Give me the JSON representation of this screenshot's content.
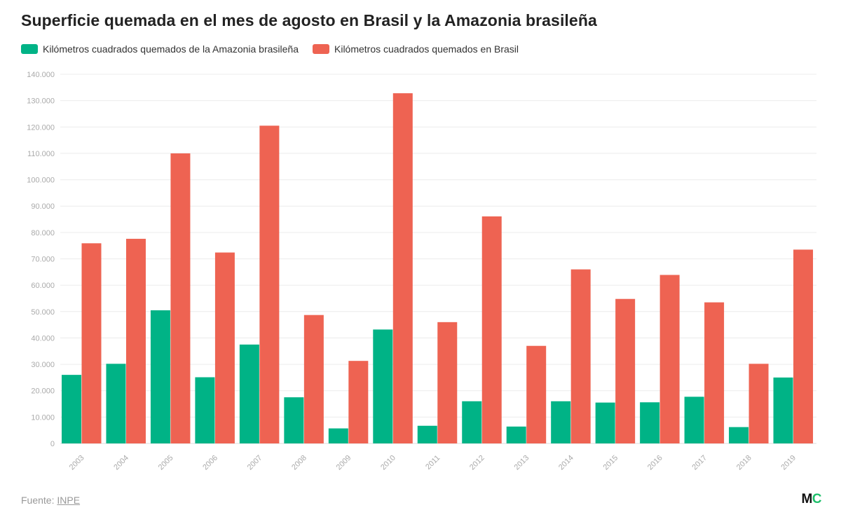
{
  "colors": {
    "amazonia": "#00b386",
    "brasil": "#ee6352",
    "grid": "#ececec",
    "axis_text": "#aaaaaa"
  },
  "logo": {
    "m": "M",
    "c": "C"
  },
  "source": {
    "prefix": "Fuente: ",
    "link": "INPE"
  },
  "chart_data": {
    "type": "bar",
    "title": "Superficie quemada en el mes de agosto en Brasil y la Amazonia brasileña",
    "xlabel": "",
    "ylabel": "",
    "ylim": [
      0,
      140000
    ],
    "yticks": [
      0,
      10000,
      20000,
      30000,
      40000,
      50000,
      60000,
      70000,
      80000,
      90000,
      100000,
      110000,
      120000,
      130000,
      140000
    ],
    "ytick_labels": [
      "0",
      "10.000",
      "20.000",
      "30.000",
      "40.000",
      "50.000",
      "60.000",
      "70.000",
      "80.000",
      "90.000",
      "100.000",
      "110.000",
      "120.000",
      "130.000",
      "140.000"
    ],
    "grid": true,
    "legend_position": "top-left",
    "categories": [
      "2003",
      "2004",
      "2005",
      "2006",
      "2007",
      "2008",
      "2009",
      "2010",
      "2011",
      "2012",
      "2013",
      "2014",
      "2015",
      "2016",
      "2017",
      "2018",
      "2019"
    ],
    "series": [
      {
        "name": "Kilómetros cuadrados quemados de la Amazonia brasileña",
        "values": [
          26000,
          30200,
          50500,
          25100,
          37500,
          17500,
          5700,
          43200,
          6700,
          16000,
          6400,
          16000,
          15500,
          15600,
          17700,
          6200,
          25000
        ]
      },
      {
        "name": "Kilómetros cuadrados quemados en Brasil",
        "values": [
          75900,
          77600,
          110000,
          72400,
          120500,
          48700,
          31300,
          132800,
          46000,
          86100,
          37000,
          66000,
          54800,
          63900,
          53500,
          30200,
          73500
        ]
      }
    ]
  }
}
